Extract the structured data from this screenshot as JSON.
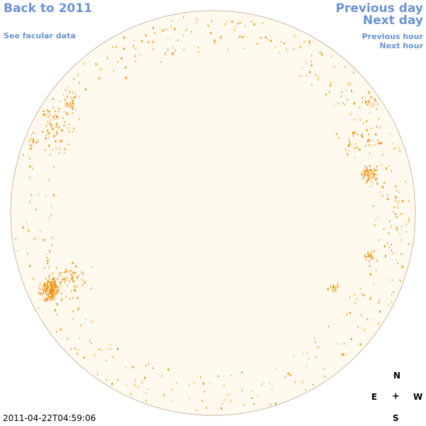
{
  "nav": {
    "back_label": "Back to 2011",
    "facular_label": "See facular data",
    "previous_day_label": "Previous day",
    "next_day_label": "Next day",
    "previous_hour_label": "Previous hour",
    "next_hour_label": "Next hour"
  },
  "compass": {
    "north": "N",
    "east": "E",
    "center": "+",
    "west": "W",
    "south": "S"
  },
  "timestamp": "2011-04-22T04:59:06",
  "colors": {
    "disk_fill": "#fff9ee",
    "disk_stroke": "#c8b9a6",
    "facula_color": "#f0900a",
    "link_color": "#6a93d8"
  }
}
